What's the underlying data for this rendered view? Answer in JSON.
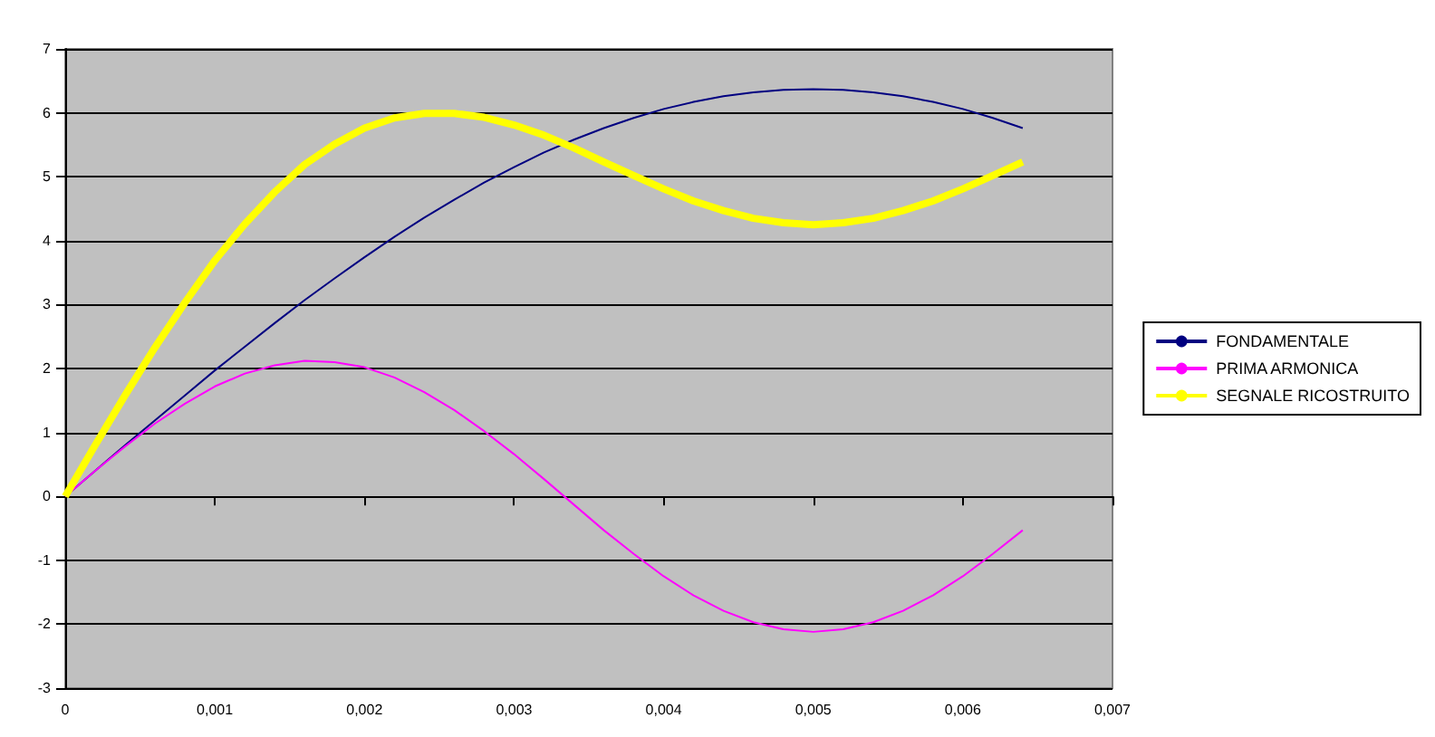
{
  "chart_data": {
    "type": "line",
    "x": [
      0,
      0.0002,
      0.0004,
      0.0006,
      0.0008,
      0.001,
      0.0012,
      0.0014,
      0.0016,
      0.0018,
      0.002,
      0.0022,
      0.0024,
      0.0026,
      0.0028,
      0.003,
      0.0032,
      0.0034,
      0.0036,
      0.0038,
      0.004,
      0.0042,
      0.0044,
      0.0046,
      0.0048,
      0.005,
      0.0052,
      0.0054,
      0.0056,
      0.0058,
      0.006,
      0.0062,
      0.0064
    ],
    "series": [
      {
        "name": "FONDAMENTALE",
        "color": "#000080",
        "values": [
          0,
          0.4,
          0.8,
          1.19,
          1.58,
          1.97,
          2.34,
          2.71,
          3.07,
          3.41,
          3.74,
          4.06,
          4.36,
          4.64,
          4.91,
          5.15,
          5.38,
          5.58,
          5.76,
          5.92,
          6.06,
          6.17,
          6.26,
          6.32,
          6.36,
          6.37,
          6.36,
          6.32,
          6.26,
          6.17,
          6.06,
          5.92,
          5.76
        ]
      },
      {
        "name": "PRIMA ARMONICA",
        "color": "#ff00ff",
        "values": [
          0,
          0.4,
          0.78,
          1.14,
          1.45,
          1.72,
          1.92,
          2.05,
          2.12,
          2.1,
          2.02,
          1.86,
          1.63,
          1.35,
          1.02,
          0.66,
          0.27,
          -0.13,
          -0.53,
          -0.9,
          -1.25,
          -1.55,
          -1.79,
          -1.97,
          -2.08,
          -2.12,
          -2.08,
          -1.97,
          -1.79,
          -1.55,
          -1.25,
          -0.9,
          -0.53
        ]
      },
      {
        "name": "SEGNALE RICOSTRUITO",
        "color": "#ffff00",
        "values": [
          0,
          0.8,
          1.58,
          2.33,
          3.03,
          3.69,
          4.26,
          4.76,
          5.19,
          5.51,
          5.76,
          5.92,
          5.99,
          5.99,
          5.93,
          5.81,
          5.65,
          5.45,
          5.23,
          5.02,
          4.81,
          4.62,
          4.47,
          4.35,
          4.28,
          4.25,
          4.28,
          4.35,
          4.47,
          4.62,
          4.81,
          5.02,
          5.23
        ]
      }
    ],
    "xlim": [
      0,
      0.007
    ],
    "xticks": [
      0,
      {
        "value": 0.001,
        "label": "0,001"
      },
      {
        "value": 0.002,
        "label": "0,002"
      },
      {
        "value": 0.003,
        "label": "0,003"
      },
      {
        "value": 0.004,
        "label": "0,004"
      },
      {
        "value": 0.005,
        "label": "0,005"
      },
      {
        "value": 0.006,
        "label": "0,006"
      },
      {
        "value": 0.007,
        "label": "0,007"
      }
    ],
    "ylim": [
      -3,
      7
    ],
    "yticks": [
      -3,
      -2,
      -1,
      0,
      1,
      2,
      3,
      4,
      5,
      6,
      7
    ],
    "grid": "y",
    "legend": "right",
    "marker": "none"
  }
}
